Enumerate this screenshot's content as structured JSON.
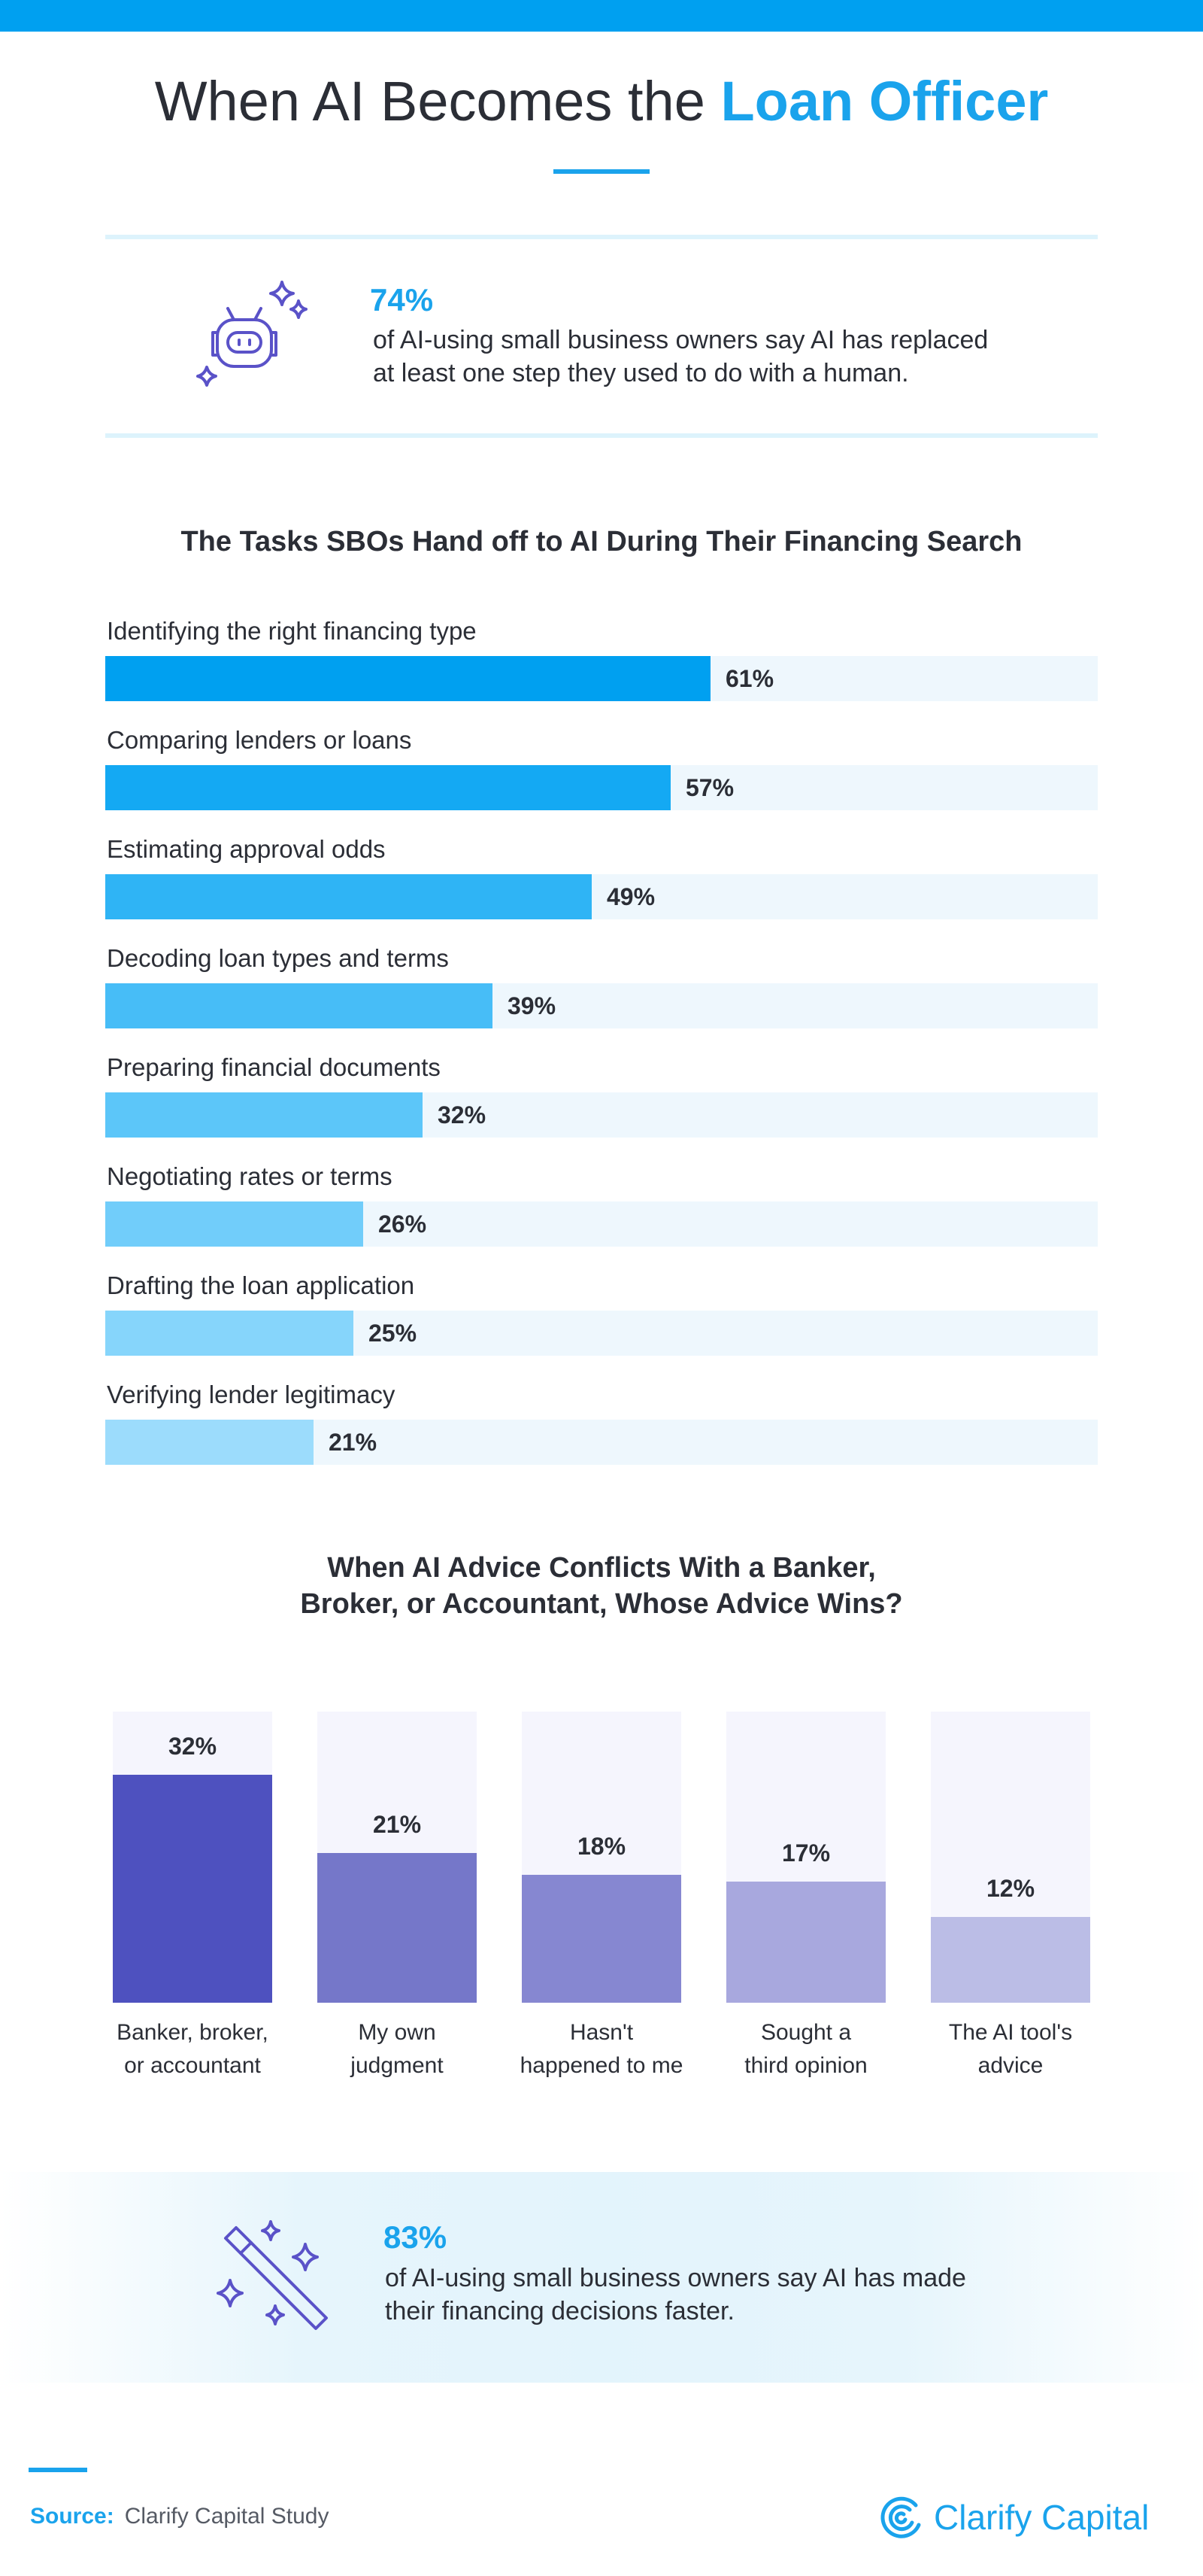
{
  "header": {
    "title_plain": "When AI Becomes the",
    "title_accent": "Loan Officer",
    "accent_color": "#1aa3ec",
    "bar_color": "#00a0f0"
  },
  "stat_top": {
    "value": "74%",
    "line1": "of AI-using small business owners say AI has replaced",
    "line2": "at least one step they used to do with a human.",
    "icon": "robot-head-sparkles-icon"
  },
  "chart_data": [
    {
      "type": "bar",
      "orientation": "horizontal",
      "title": "The Tasks SBOs Hand off to AI During Their Financing Search",
      "categories": [
        "Identifying the right financing type",
        "Comparing lenders or loans",
        "Estimating approval odds",
        "Decoding loan types and terms",
        "Preparing financial documents",
        "Negotiating rates or terms",
        "Drafting the loan application",
        "Verifying lender legitimacy"
      ],
      "values": [
        61,
        57,
        49,
        39,
        32,
        26,
        25,
        21
      ],
      "value_labels": [
        "61%",
        "57%",
        "49%",
        "39%",
        "32%",
        "26%",
        "25%",
        "21%"
      ],
      "colors": [
        "#00a0f0",
        "#14a9f3",
        "#2fb4f5",
        "#47bdf7",
        "#5cc6f9",
        "#71cdfa",
        "#86d5fb",
        "#9cdcfc"
      ],
      "xlim": [
        0,
        100
      ]
    },
    {
      "type": "bar",
      "orientation": "vertical",
      "title_line1": "When AI Advice Conflicts With a Banker,",
      "title_line2": "Broker, or Accountant, Whose Advice Wins?",
      "categories": [
        [
          "Banker, broker,",
          "or accountant"
        ],
        [
          "My own",
          "judgment"
        ],
        [
          "Hasn't",
          "happened to me"
        ],
        [
          "Sought a",
          "third opinion"
        ],
        [
          "The AI tool's",
          "advice"
        ]
      ],
      "values": [
        32,
        21,
        18,
        17,
        12
      ],
      "value_labels": [
        "32%",
        "21%",
        "18%",
        "17%",
        "12%"
      ],
      "colors": [
        "#4e51bf",
        "#7577c9",
        "#8687d1",
        "#a8a8de",
        "#bbbde6"
      ],
      "ylim": [
        0,
        40.9
      ]
    }
  ],
  "stat_bottom": {
    "value": "83%",
    "line1": "of AI-using small business owners say AI has made",
    "line2": "their financing decisions faster.",
    "icon": "magic-wand-sparkles-icon"
  },
  "footer": {
    "source_label": "Source:",
    "source_text": "Clarify Capital Study",
    "brand": "Clarify Capital",
    "logo_icon": "clarify-capital-logo-icon"
  }
}
